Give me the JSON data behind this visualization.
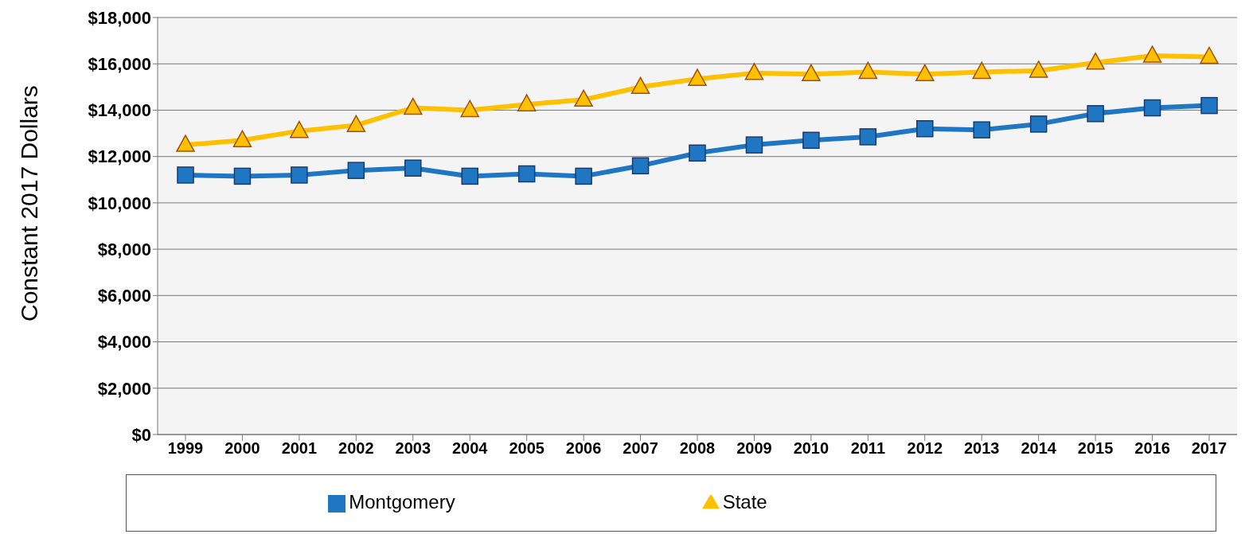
{
  "chart_data": {
    "type": "line",
    "ylabel": "Constant 2017 Dollars",
    "categories": [
      "1999",
      "2000",
      "2001",
      "2002",
      "2003",
      "2004",
      "2005",
      "2006",
      "2007",
      "2008",
      "2009",
      "2010",
      "2011",
      "2012",
      "2013",
      "2014",
      "2015",
      "2016",
      "2017"
    ],
    "series": [
      {
        "name": "Montgomery",
        "color": "#1f77c4",
        "marker": "square",
        "values": [
          11200,
          11150,
          11200,
          11400,
          11500,
          11150,
          11250,
          11150,
          11600,
          12150,
          12500,
          12700,
          12850,
          13200,
          13150,
          13400,
          13850,
          14100,
          14200
        ]
      },
      {
        "name": "State",
        "color": "#ffc000",
        "marker": "triangle",
        "values": [
          12500,
          12700,
          13100,
          13350,
          14100,
          14000,
          14250,
          14450,
          15000,
          15350,
          15600,
          15550,
          15650,
          15550,
          15650,
          15700,
          16050,
          16350,
          16300
        ]
      }
    ],
    "ylim": [
      0,
      18000
    ],
    "yticks": [
      {
        "value": 0,
        "label": "$0"
      },
      {
        "value": 2000,
        "label": "$2,000"
      },
      {
        "value": 4000,
        "label": "$4,000"
      },
      {
        "value": 6000,
        "label": "$6,000"
      },
      {
        "value": 8000,
        "label": "$8,000"
      },
      {
        "value": 10000,
        "label": "$10,000"
      },
      {
        "value": 12000,
        "label": "$12,000"
      },
      {
        "value": 14000,
        "label": "$14,000"
      },
      {
        "value": 16000,
        "label": "$16,000"
      },
      {
        "value": 18000,
        "label": "$18,000"
      }
    ],
    "grid": "y",
    "legend": "bottom"
  }
}
